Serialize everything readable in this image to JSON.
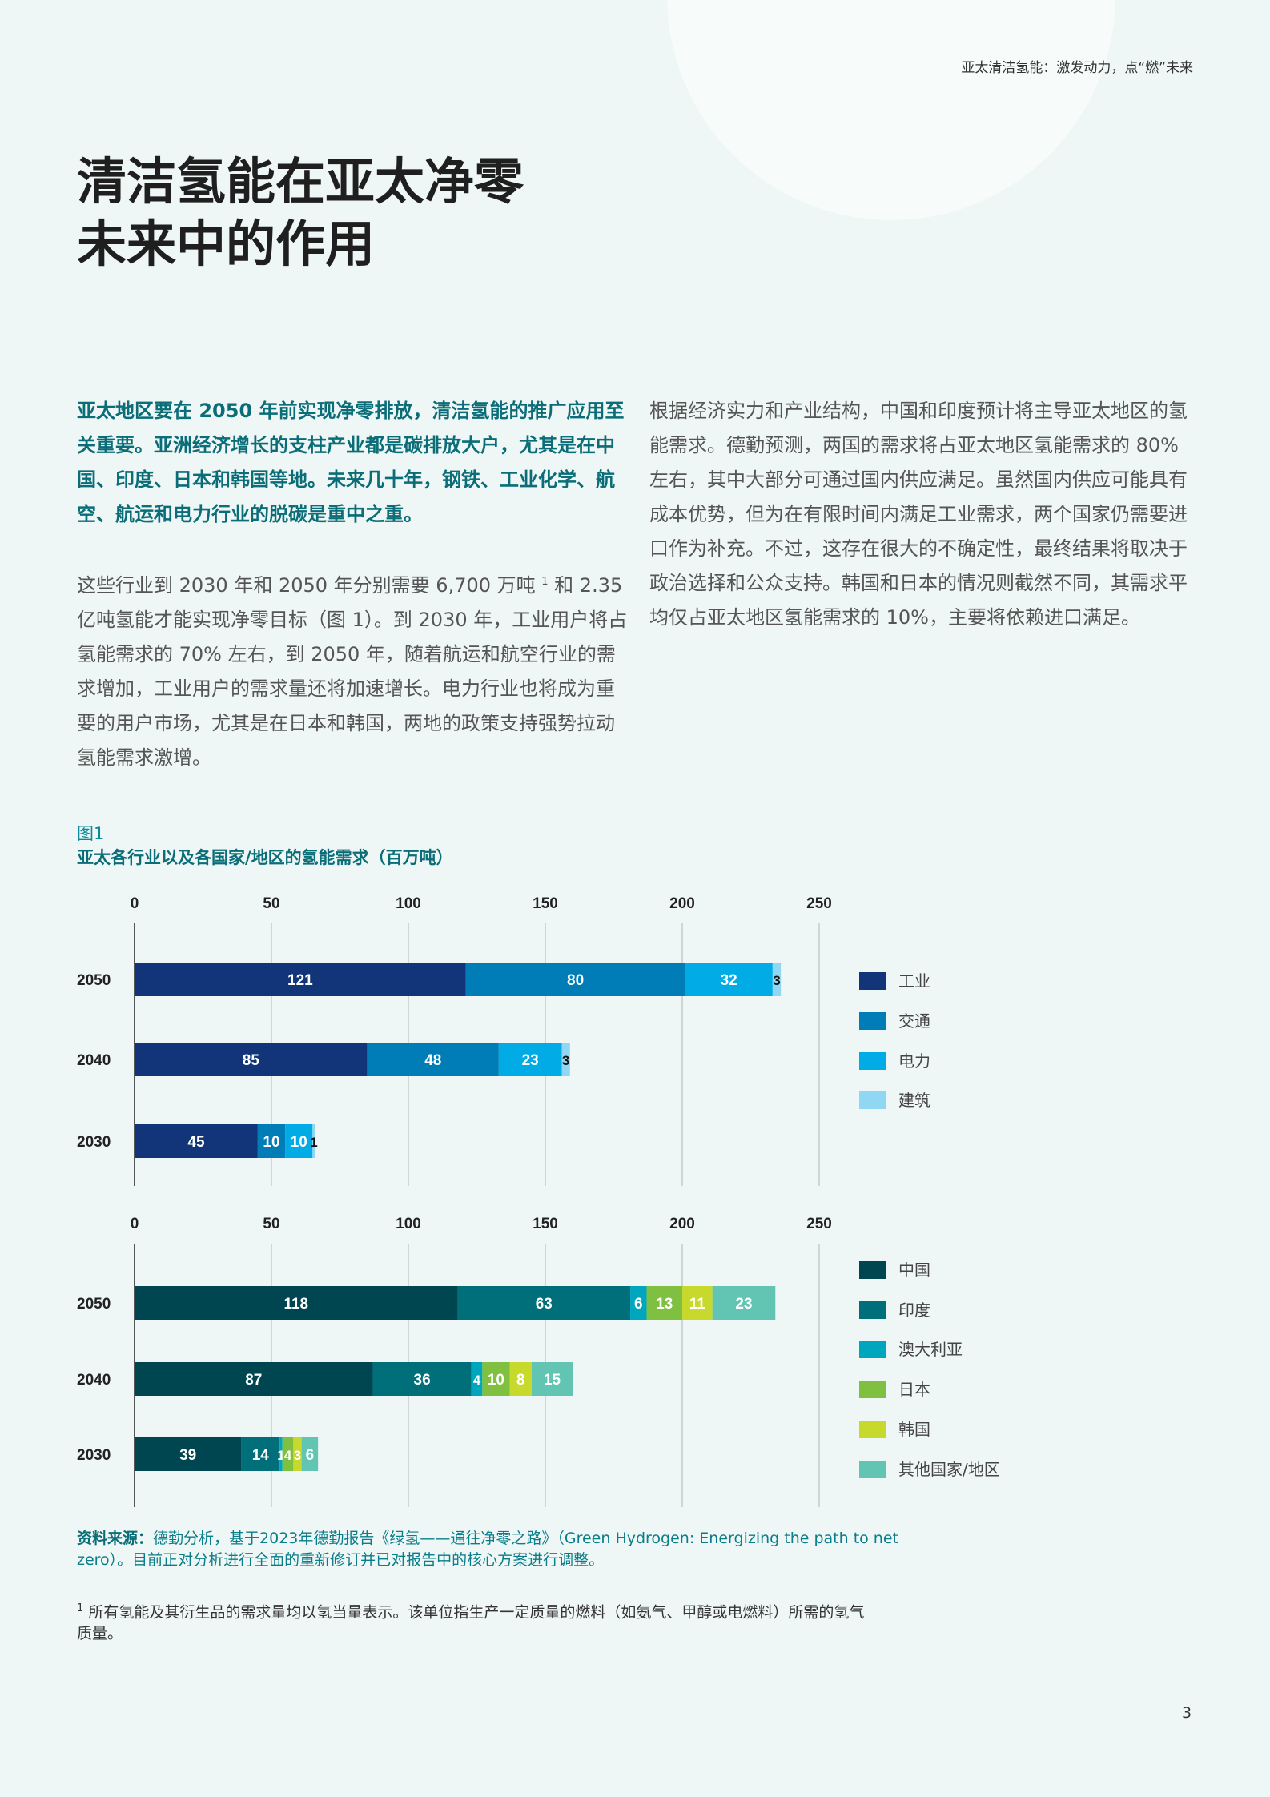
{
  "header": {
    "running_title": "亚太清洁氢能：激发动力，点“燃”未来"
  },
  "title": {
    "line1": "清洁氢能在亚太净零",
    "line2": "未来中的作用"
  },
  "lead": "亚太地区要在 2050 年前实现净零排放，清洁氢能的推广应用至关重要。亚洲经济增长的支柱产业都是碳排放大户，尤其是在中国、印度、日本和韩国等地。未来几十年，钢铁、工业化学、航空、航运和电力行业的脱碳是重中之重。",
  "body1": {
    "before": "这些行业到 2030 年和 2050 年分别需要 6,700 万吨 ",
    "sup": "1",
    "after": " 和 2.35 亿吨氢能才能实现净零目标（图 1）。到 2030 年，工业用户将占氢能需求的 70% 左右，到 2050 年，随着航运和航空行业的需求增加，工业用户的需求量还将加速增长。电力行业也将成为重要的用户市场，尤其是在日本和韩国，两地的政策支持强势拉动氢能需求激增。"
  },
  "body2": "根据经济实力和产业结构，中国和印度预计将主导亚太地区的氢能需求。德勤预测，两国的需求将占亚太地区氢能需求的 80% 左右，其中大部分可通过国内供应满足。虽然国内供应可能具有成本优势，但为在有限时间内满足工业需求，两个国家仍需要进口作为补充。不过，这存在很大的不确定性，最终结果将取决于政治选择和公众支持。韩国和日本的情况则截然不同，其需求平均仅占亚太地区氢能需求的 10%，主要将依赖进口满足。",
  "figure": {
    "label": "图1",
    "title": "亚太各行业以及各国家/地区的氢能需求（百万吨）"
  },
  "chart_data": [
    {
      "type": "bar",
      "orientation": "horizontal",
      "stacked": true,
      "categories": [
        "2050",
        "2040",
        "2030"
      ],
      "xlim": [
        0,
        250
      ],
      "xticks": [
        "0",
        "50",
        "100",
        "150",
        "200",
        "250"
      ],
      "grid": true,
      "legend": "right",
      "series": [
        {
          "name": "工业",
          "color": "#12357a",
          "label_color": "#ffffff",
          "values": [
            121,
            85,
            45
          ]
        },
        {
          "name": "交通",
          "color": "#007cb6",
          "label_color": "#ffffff",
          "values": [
            80,
            48,
            10
          ]
        },
        {
          "name": "电力",
          "color": "#00abe6",
          "label_color": "#ffffff",
          "values": [
            32,
            23,
            10
          ]
        },
        {
          "name": "建筑",
          "color": "#8fd7f3",
          "label_color": "#111111",
          "values": [
            3,
            3,
            1
          ]
        }
      ]
    },
    {
      "type": "bar",
      "orientation": "horizontal",
      "stacked": true,
      "categories": [
        "2050",
        "2040",
        "2030"
      ],
      "xlim": [
        0,
        250
      ],
      "xticks": [
        "0",
        "50",
        "100",
        "150",
        "200",
        "250"
      ],
      "grid": true,
      "legend": "right",
      "series": [
        {
          "name": "中国",
          "color": "#004651",
          "label_color": "#ffffff",
          "values": [
            118,
            87,
            39
          ]
        },
        {
          "name": "印度",
          "color": "#006f79",
          "label_color": "#ffffff",
          "values": [
            63,
            36,
            14
          ]
        },
        {
          "name": "澳大利亚",
          "color": "#00a6bd",
          "label_color": "#ffffff",
          "values": [
            6,
            4,
            1
          ]
        },
        {
          "name": "日本",
          "color": "#80c041",
          "label_color": "#ffffff",
          "values": [
            13,
            10,
            4
          ]
        },
        {
          "name": "韩国",
          "color": "#c6d92c",
          "label_color": "#ffffff",
          "values": [
            11,
            8,
            3
          ]
        },
        {
          "name": "其他国家/地区",
          "color": "#62c4b2",
          "label_color": "#ffffff",
          "values": [
            23,
            15,
            6
          ]
        }
      ]
    }
  ],
  "source": {
    "label": "资料来源：",
    "text": "德勤分析，基于2023年德勤报告《绿氢——通往净零之路》（Green Hydrogen: Energizing the path to net zero）。目前正对分析进行全面的重新修订并已对报告中的核心方案进行调整。"
  },
  "footnote": {
    "mark": "1",
    "text": "所有氢能及其衍生品的需求量均以氢当量表示。该单位指生产一定质量的燃料（如氨气、甲醇或电燃料）所需的氢气质量。"
  },
  "page_number": "3"
}
